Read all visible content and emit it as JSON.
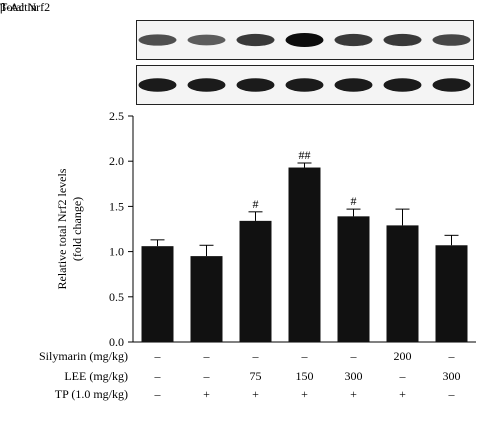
{
  "blots": {
    "nrf2_label": "Total Nrf2",
    "actin_label_greek": "β",
    "actin_label_rest": "-Actin",
    "nrf2_intensity": [
      0.55,
      0.45,
      0.7,
      1.0,
      0.7,
      0.7,
      0.6
    ],
    "actin_intensity": [
      0.9,
      0.9,
      0.9,
      0.9,
      0.9,
      0.9,
      0.9
    ]
  },
  "chart_data": {
    "type": "bar",
    "ylabel_line1": "Relative total Nrf2 levels",
    "ylabel_line2": "(fold change)",
    "ylim": [
      0,
      2.5
    ],
    "yticks": [
      "0.0",
      "0.5",
      "1.0",
      "1.5",
      "2.0",
      "2.5"
    ],
    "bar_color": "#111111",
    "values": [
      1.06,
      0.95,
      1.34,
      1.93,
      1.39,
      1.29,
      1.07
    ],
    "errors": [
      0.07,
      0.12,
      0.1,
      0.05,
      0.08,
      0.18,
      0.11
    ],
    "annotations": [
      "",
      "",
      "#",
      "##",
      "#",
      "",
      ""
    ],
    "conditions": [
      {
        "label": "Silymarin (mg/kg)",
        "values": [
          "–",
          "–",
          "–",
          "–",
          "–",
          "200",
          "–"
        ]
      },
      {
        "label": "LEE (mg/kg)",
        "values": [
          "–",
          "–",
          "75",
          "150",
          "300",
          "–",
          "300"
        ]
      },
      {
        "label": "TP (1.0 mg/kg)",
        "values": [
          "–",
          "+",
          "+",
          "+",
          "+",
          "+",
          "–"
        ]
      }
    ]
  }
}
